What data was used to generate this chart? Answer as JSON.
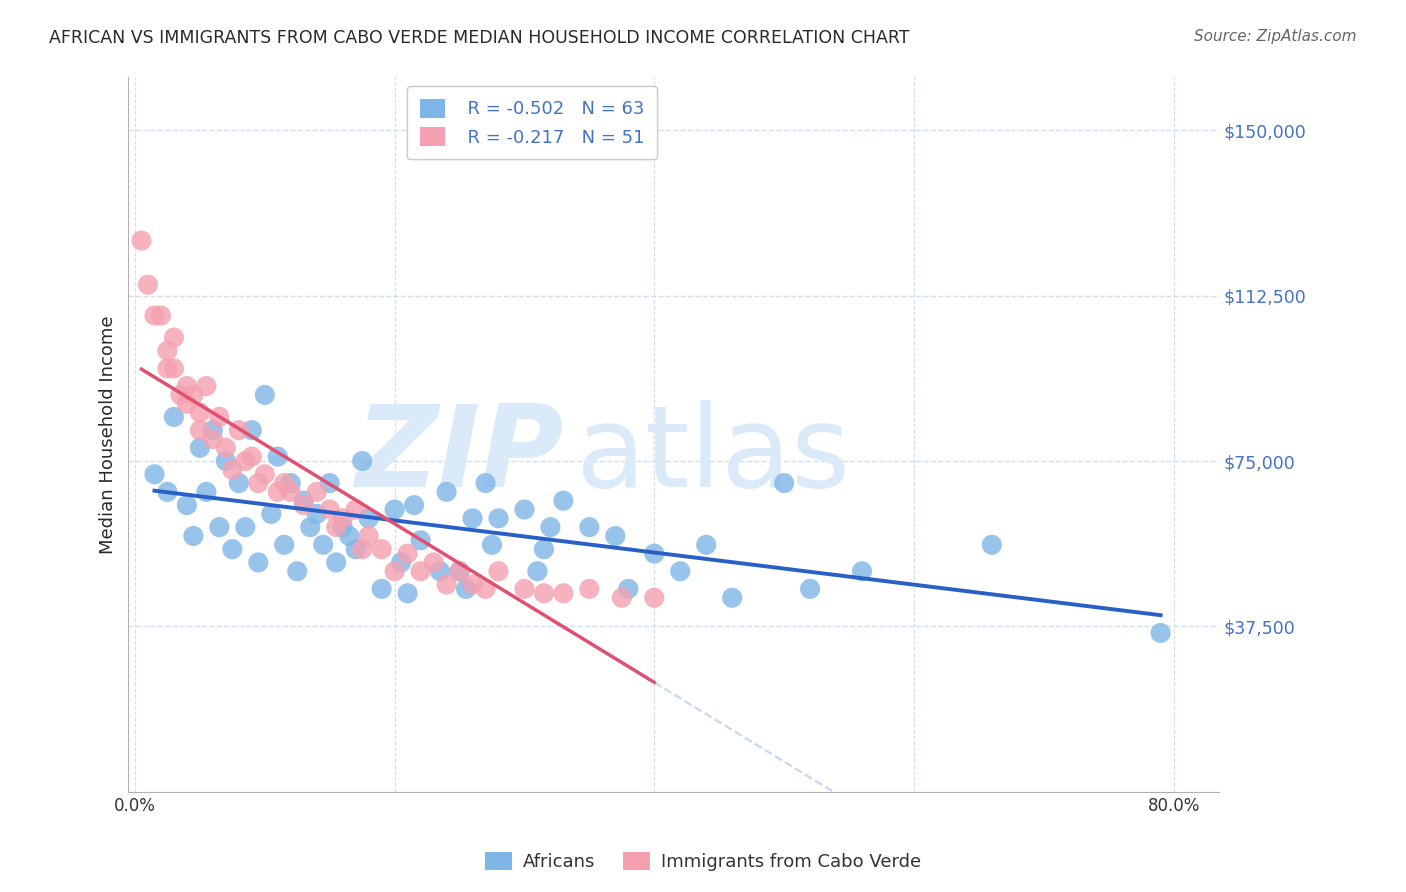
{
  "title": "AFRICAN VS IMMIGRANTS FROM CABO VERDE MEDIAN HOUSEHOLD INCOME CORRELATION CHART",
  "source": "Source: ZipAtlas.com",
  "ylabel": "Median Household Income",
  "ytick_labels": [
    "$37,500",
    "$75,000",
    "$112,500",
    "$150,000"
  ],
  "ytick_values": [
    37500,
    75000,
    112500,
    150000
  ],
  "ymin": 0,
  "ymax": 162000,
  "xmin": -0.005,
  "xmax": 0.835,
  "legend_r1": "R = -0.502",
  "legend_n1": "N = 63",
  "legend_r2": "R = -0.217",
  "legend_n2": "N = 51",
  "color_blue": "#7EB6E8",
  "color_pink": "#F4A0B0",
  "line_blue": "#2860C8",
  "line_pink": "#E05070",
  "line_dashed": "#C8D8F0",
  "africans_x": [
    0.015,
    0.025,
    0.03,
    0.04,
    0.045,
    0.05,
    0.055,
    0.06,
    0.065,
    0.07,
    0.075,
    0.08,
    0.085,
    0.09,
    0.095,
    0.1,
    0.105,
    0.11,
    0.115,
    0.12,
    0.125,
    0.13,
    0.135,
    0.14,
    0.145,
    0.15,
    0.155,
    0.16,
    0.165,
    0.17,
    0.175,
    0.18,
    0.19,
    0.2,
    0.205,
    0.21,
    0.215,
    0.22,
    0.235,
    0.24,
    0.25,
    0.255,
    0.26,
    0.27,
    0.275,
    0.28,
    0.3,
    0.31,
    0.315,
    0.32,
    0.33,
    0.35,
    0.37,
    0.38,
    0.4,
    0.42,
    0.44,
    0.46,
    0.5,
    0.52,
    0.56,
    0.66,
    0.79
  ],
  "africans_y": [
    72000,
    68000,
    85000,
    65000,
    58000,
    78000,
    68000,
    82000,
    60000,
    75000,
    55000,
    70000,
    60000,
    82000,
    52000,
    90000,
    63000,
    76000,
    56000,
    70000,
    50000,
    66000,
    60000,
    63000,
    56000,
    70000,
    52000,
    60000,
    58000,
    55000,
    75000,
    62000,
    46000,
    64000,
    52000,
    45000,
    65000,
    57000,
    50000,
    68000,
    50000,
    46000,
    62000,
    70000,
    56000,
    62000,
    64000,
    50000,
    55000,
    60000,
    66000,
    60000,
    58000,
    46000,
    54000,
    50000,
    56000,
    44000,
    70000,
    46000,
    50000,
    56000,
    36000
  ],
  "caboverde_x": [
    0.005,
    0.01,
    0.015,
    0.02,
    0.025,
    0.025,
    0.03,
    0.03,
    0.035,
    0.04,
    0.04,
    0.045,
    0.05,
    0.05,
    0.055,
    0.06,
    0.065,
    0.07,
    0.075,
    0.08,
    0.085,
    0.09,
    0.095,
    0.1,
    0.11,
    0.115,
    0.12,
    0.13,
    0.14,
    0.15,
    0.155,
    0.16,
    0.17,
    0.175,
    0.18,
    0.19,
    0.2,
    0.21,
    0.22,
    0.23,
    0.24,
    0.25,
    0.26,
    0.27,
    0.28,
    0.3,
    0.315,
    0.33,
    0.35,
    0.375,
    0.4
  ],
  "caboverde_y": [
    125000,
    115000,
    108000,
    108000,
    100000,
    96000,
    103000,
    96000,
    90000,
    92000,
    88000,
    90000,
    86000,
    82000,
    92000,
    80000,
    85000,
    78000,
    73000,
    82000,
    75000,
    76000,
    70000,
    72000,
    68000,
    70000,
    68000,
    65000,
    68000,
    64000,
    60000,
    62000,
    64000,
    55000,
    58000,
    55000,
    50000,
    54000,
    50000,
    52000,
    47000,
    50000,
    47000,
    46000,
    50000,
    46000,
    45000,
    45000,
    46000,
    44000,
    44000
  ],
  "background_color": "#ffffff",
  "grid_color": "#d0dff0",
  "title_color": "#2a2a2a",
  "source_color": "#666666",
  "watermark_color": "#dbeaf8",
  "axis_color": "#b0b0b0",
  "tick_color": "#4472C4"
}
